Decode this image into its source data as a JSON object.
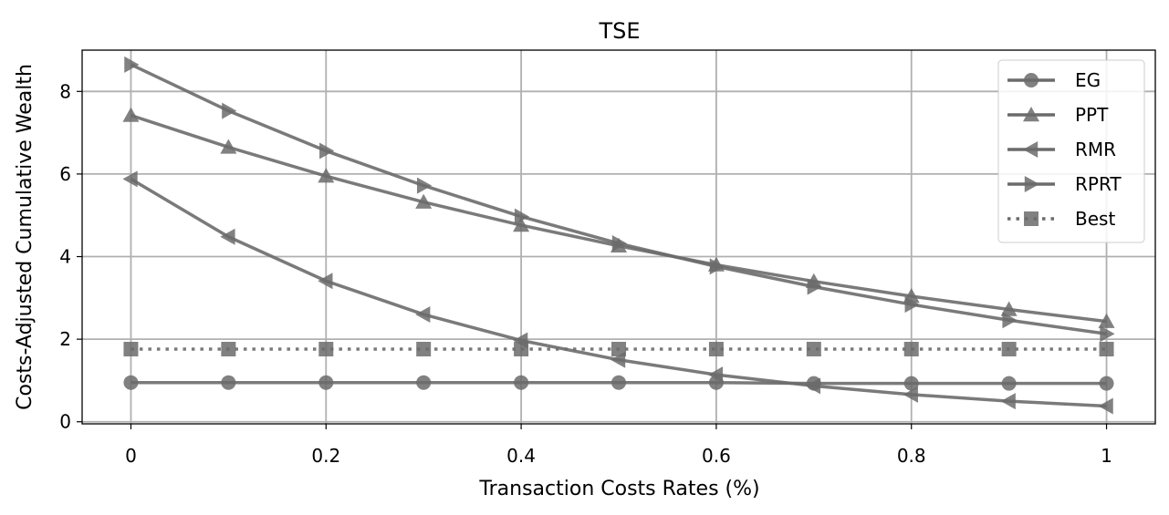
{
  "chart_data": {
    "type": "line",
    "title": "TSE",
    "xlabel": "Transaction Costs Rates (%)",
    "ylabel": "Costs-Adjusted Cumulative Wealth",
    "x": [
      0,
      0.1,
      0.2,
      0.3,
      0.4,
      0.5,
      0.6,
      0.7,
      0.8,
      0.9,
      1.0
    ],
    "xlim": [
      -0.05,
      1.05
    ],
    "ylim": [
      -0.05,
      9.0
    ],
    "xticks": [
      0,
      0.2,
      0.4,
      0.6,
      0.8,
      1.0
    ],
    "xtick_labels": [
      "0",
      "0.2",
      "0.4",
      "0.6",
      "0.8",
      "1"
    ],
    "yticks": [
      0,
      2,
      4,
      6,
      8
    ],
    "ytick_labels": [
      "0",
      "2",
      "4",
      "6",
      "8"
    ],
    "grid": true,
    "legend_position": "top-right",
    "series": [
      {
        "name": "EG",
        "marker": "circle",
        "dashed": false,
        "values": [
          0.95,
          0.95,
          0.95,
          0.95,
          0.95,
          0.95,
          0.95,
          0.93,
          0.93,
          0.93,
          0.93
        ]
      },
      {
        "name": "PPT",
        "marker": "triangle-up",
        "dashed": false,
        "values": [
          7.42,
          6.65,
          5.95,
          5.32,
          4.76,
          4.26,
          3.8,
          3.4,
          3.04,
          2.72,
          2.43
        ]
      },
      {
        "name": "RMR",
        "marker": "triangle-left",
        "dashed": false,
        "values": [
          5.88,
          4.48,
          3.41,
          2.6,
          1.97,
          1.5,
          1.14,
          0.87,
          0.66,
          0.5,
          0.38
        ]
      },
      {
        "name": "RPRT",
        "marker": "triangle-right",
        "dashed": false,
        "values": [
          8.65,
          7.53,
          6.56,
          5.72,
          4.97,
          4.32,
          3.76,
          3.27,
          2.84,
          2.46,
          2.13
        ]
      },
      {
        "name": "Best",
        "marker": "square",
        "dashed": true,
        "values": [
          1.76,
          1.76,
          1.76,
          1.76,
          1.76,
          1.76,
          1.76,
          1.76,
          1.76,
          1.76,
          1.76
        ]
      }
    ],
    "colors": {
      "series": "#6b6b6b",
      "grid": "#b0b0b0",
      "axes": "#000000"
    }
  }
}
